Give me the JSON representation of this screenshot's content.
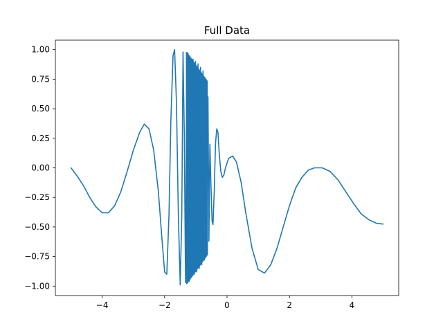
{
  "chart_data": {
    "type": "line",
    "title": "Full Data",
    "xlabel": "",
    "ylabel": "",
    "xlim": [
      -5.5,
      5.5
    ],
    "ylim": [
      -1.08,
      1.08
    ],
    "xticks": [
      -4,
      -2,
      0,
      2,
      4
    ],
    "yticks": [
      -1.0,
      -0.75,
      -0.5,
      -0.25,
      0.0,
      0.25,
      0.5,
      0.75,
      1.0
    ],
    "grid": false,
    "legend": "none",
    "series": [
      {
        "color": "#1f77b4",
        "x_range": [
          -5,
          5
        ],
        "points": [
          [
            -5.0,
            0.0
          ],
          [
            -4.8,
            -0.07
          ],
          [
            -4.6,
            -0.15
          ],
          [
            -4.4,
            -0.25
          ],
          [
            -4.2,
            -0.33
          ],
          [
            -4.0,
            -0.38
          ],
          [
            -3.8,
            -0.38
          ],
          [
            -3.6,
            -0.32
          ],
          [
            -3.4,
            -0.2
          ],
          [
            -3.2,
            -0.03
          ],
          [
            -3.0,
            0.15
          ],
          [
            -2.8,
            0.3
          ],
          [
            -2.65,
            0.37
          ],
          [
            -2.5,
            0.33
          ],
          [
            -2.35,
            0.15
          ],
          [
            -2.2,
            -0.2
          ],
          [
            -2.1,
            -0.55
          ],
          [
            -2.0,
            -0.88
          ],
          [
            -1.93,
            -0.9
          ],
          [
            -1.86,
            -0.4
          ],
          [
            -1.8,
            0.4
          ],
          [
            -1.73,
            0.95
          ],
          [
            -1.68,
            1.0
          ],
          [
            -1.62,
            0.55
          ],
          [
            -1.56,
            -0.4
          ],
          [
            -1.5,
            -0.99
          ],
          [
            -1.45,
            -0.4
          ],
          [
            -1.41,
            0.98
          ],
          [
            -1.37,
            0.3
          ],
          [
            -1.33,
            -0.97
          ],
          [
            -1.29,
            0.96
          ],
          [
            -1.25,
            0.97
          ],
          [
            -1.21,
            -0.96
          ],
          [
            -1.17,
            0.93
          ],
          [
            -1.13,
            -0.92
          ],
          [
            -1.09,
            0.92
          ],
          [
            -1.05,
            -0.9
          ],
          [
            -1.01,
            0.9
          ],
          [
            -0.97,
            -0.88
          ],
          [
            -0.93,
            0.88
          ],
          [
            -0.89,
            -0.85
          ],
          [
            -0.85,
            0.85
          ],
          [
            -0.81,
            -0.82
          ],
          [
            -0.77,
            0.82
          ],
          [
            -0.73,
            -0.78
          ],
          [
            -0.69,
            0.75
          ],
          [
            -0.65,
            -0.7
          ],
          [
            -0.61,
            0.6
          ],
          [
            -0.58,
            -0.62
          ],
          [
            -0.55,
            0.2
          ],
          [
            -0.52,
            -0.1
          ],
          [
            -0.48,
            -0.45
          ],
          [
            -0.45,
            -0.48
          ],
          [
            -0.41,
            -0.2
          ],
          [
            -0.37,
            0.2
          ],
          [
            -0.33,
            0.33
          ],
          [
            -0.29,
            0.3
          ],
          [
            -0.25,
            0.12
          ],
          [
            -0.2,
            -0.03
          ],
          [
            -0.15,
            -0.08
          ],
          [
            -0.1,
            -0.06
          ],
          [
            -0.05,
            0.0
          ],
          [
            0.05,
            0.08
          ],
          [
            0.18,
            0.1
          ],
          [
            0.3,
            0.05
          ],
          [
            0.45,
            -0.12
          ],
          [
            0.6,
            -0.38
          ],
          [
            0.8,
            -0.68
          ],
          [
            1.0,
            -0.86
          ],
          [
            1.2,
            -0.89
          ],
          [
            1.4,
            -0.82
          ],
          [
            1.6,
            -0.68
          ],
          [
            1.8,
            -0.5
          ],
          [
            2.0,
            -0.32
          ],
          [
            2.2,
            -0.17
          ],
          [
            2.4,
            -0.08
          ],
          [
            2.6,
            -0.02
          ],
          [
            2.8,
            0.0
          ],
          [
            3.05,
            0.0
          ],
          [
            3.3,
            -0.03
          ],
          [
            3.55,
            -0.1
          ],
          [
            3.8,
            -0.2
          ],
          [
            4.05,
            -0.3
          ],
          [
            4.3,
            -0.39
          ],
          [
            4.55,
            -0.44
          ],
          [
            4.8,
            -0.47
          ],
          [
            5.0,
            -0.475
          ]
        ]
      }
    ]
  }
}
